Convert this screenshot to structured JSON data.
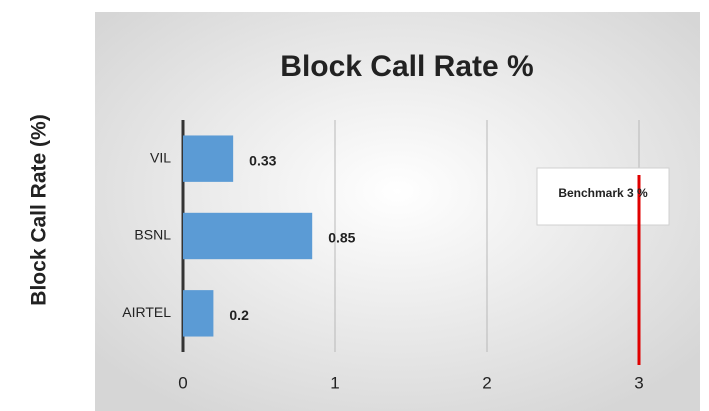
{
  "chart_data": {
    "type": "bar",
    "orientation": "horizontal",
    "title": "Block Call Rate %",
    "y_label": "Block Call Rate (%)",
    "categories": [
      "VIL",
      "BSNL",
      "AIRTEL"
    ],
    "values": [
      0.33,
      0.85,
      0.2
    ],
    "color": "#5b9bd5",
    "xlim": [
      0,
      3
    ],
    "xticks": [
      0,
      1,
      2,
      3
    ],
    "grid": true,
    "annotations": [
      {
        "text": "Benchmark  3 %",
        "x": 3,
        "color": "#e00000"
      }
    ]
  }
}
